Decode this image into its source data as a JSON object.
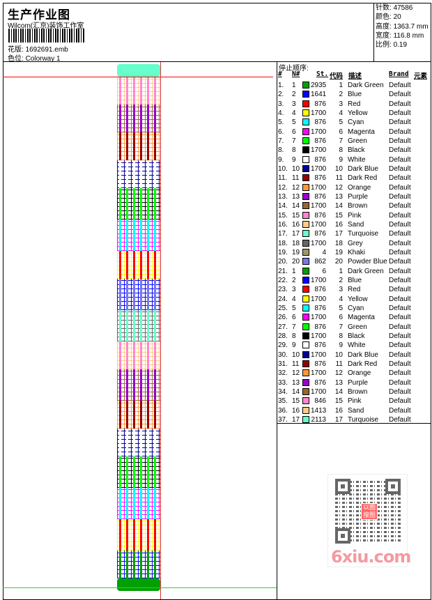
{
  "header": {
    "title": "生产作业图",
    "studio": "Wilcom(汇京)装饰工作室",
    "design_label": "花版:",
    "design_file": "1692691.emb",
    "colorway_label": "色位:",
    "colorway": "Colorway 1"
  },
  "info": [
    {
      "label": "针数:",
      "value": "47586"
    },
    {
      "label": "颜色:",
      "value": "20"
    },
    {
      "label": "高度:",
      "value": "1363.7 mm"
    },
    {
      "label": "宽度:",
      "value": "116.8 mm"
    },
    {
      "label": "比例:",
      "value": "0.19"
    }
  ],
  "stoplist": {
    "title": "停止顺序:",
    "columns": [
      "#",
      "N#",
      "St.",
      "代码",
      "描述",
      "Brand",
      "元素"
    ],
    "rows": [
      [
        "1.",
        "1",
        "#00a000",
        "2935",
        "1",
        "Dark Green",
        "Default"
      ],
      [
        "2.",
        "2",
        "#0000ff",
        "1641",
        "2",
        "Blue",
        "Default"
      ],
      [
        "3.",
        "3",
        "#ff0000",
        "876",
        "3",
        "Red",
        "Default"
      ],
      [
        "4.",
        "4",
        "#ffff00",
        "1700",
        "4",
        "Yellow",
        "Default"
      ],
      [
        "5.",
        "5",
        "#00ffff",
        "876",
        "5",
        "Cyan",
        "Default"
      ],
      [
        "6.",
        "6",
        "#ff00ff",
        "1700",
        "6",
        "Magenta",
        "Default"
      ],
      [
        "7.",
        "7",
        "#00ff00",
        "876",
        "7",
        "Green",
        "Default"
      ],
      [
        "8.",
        "8",
        "#000000",
        "1700",
        "8",
        "Black",
        "Default"
      ],
      [
        "9.",
        "9",
        "#ffffff",
        "876",
        "9",
        "White",
        "Default"
      ],
      [
        "10.",
        "10",
        "#000099",
        "1700",
        "10",
        "Dark Blue",
        "Default"
      ],
      [
        "11.",
        "11",
        "#990000",
        "876",
        "11",
        "Dark Red",
        "Default"
      ],
      [
        "12.",
        "12",
        "#ff9933",
        "1700",
        "12",
        "Orange",
        "Default"
      ],
      [
        "13.",
        "13",
        "#9900cc",
        "876",
        "13",
        "Purple",
        "Default"
      ],
      [
        "14.",
        "14",
        "#996633",
        "1700",
        "14",
        "Brown",
        "Default"
      ],
      [
        "15.",
        "15",
        "#ff88cc",
        "876",
        "15",
        "Pink",
        "Default"
      ],
      [
        "16.",
        "16",
        "#ffcc88",
        "1700",
        "16",
        "Sand",
        "Default"
      ],
      [
        "17.",
        "17",
        "#66ffcc",
        "876",
        "17",
        "Turquoise",
        "Default"
      ],
      [
        "18.",
        "18",
        "#666666",
        "1700",
        "18",
        "Grey",
        "Default"
      ],
      [
        "19.",
        "19",
        "#999966",
        "4",
        "19",
        "Khaki",
        "Default"
      ],
      [
        "20.",
        "20",
        "#7777ee",
        "862",
        "20",
        "Powder Blue",
        "Default"
      ],
      [
        "21.",
        "1",
        "#00a000",
        "6",
        "1",
        "Dark Green",
        "Default"
      ],
      [
        "22.",
        "2",
        "#0000ff",
        "1700",
        "2",
        "Blue",
        "Default"
      ],
      [
        "23.",
        "3",
        "#ff0000",
        "876",
        "3",
        "Red",
        "Default"
      ],
      [
        "24.",
        "4",
        "#ffff00",
        "1700",
        "4",
        "Yellow",
        "Default"
      ],
      [
        "25.",
        "5",
        "#00ffff",
        "876",
        "5",
        "Cyan",
        "Default"
      ],
      [
        "26.",
        "6",
        "#ff00ff",
        "1700",
        "6",
        "Magenta",
        "Default"
      ],
      [
        "27.",
        "7",
        "#00ff00",
        "876",
        "7",
        "Green",
        "Default"
      ],
      [
        "28.",
        "8",
        "#000000",
        "1700",
        "8",
        "Black",
        "Default"
      ],
      [
        "29.",
        "9",
        "#ffffff",
        "876",
        "9",
        "White",
        "Default"
      ],
      [
        "30.",
        "10",
        "#000099",
        "1700",
        "10",
        "Dark Blue",
        "Default"
      ],
      [
        "31.",
        "11",
        "#990000",
        "876",
        "11",
        "Dark Red",
        "Default"
      ],
      [
        "32.",
        "12",
        "#ff9933",
        "1700",
        "12",
        "Orange",
        "Default"
      ],
      [
        "33.",
        "13",
        "#9900cc",
        "876",
        "13",
        "Purple",
        "Default"
      ],
      [
        "34.",
        "14",
        "#996633",
        "1700",
        "14",
        "Brown",
        "Default"
      ],
      [
        "35.",
        "15",
        "#ff88cc",
        "846",
        "15",
        "Pink",
        "Default"
      ],
      [
        "36.",
        "16",
        "#ffcc88",
        "1413",
        "16",
        "Sand",
        "Default"
      ],
      [
        "37.",
        "17",
        "#66ffcc",
        "2113",
        "17",
        "Turquoise",
        "Default"
      ]
    ]
  },
  "watermark": {
    "site": "6xiu.com",
    "seal": "以图搜图"
  }
}
